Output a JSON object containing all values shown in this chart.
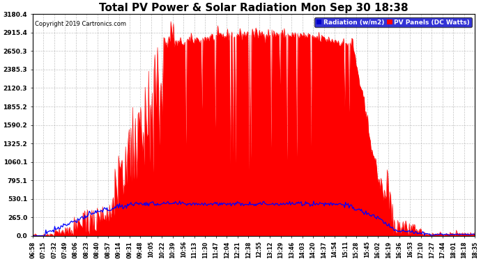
{
  "title": "Total PV Power & Solar Radiation Mon Sep 30 18:38",
  "copyright": "Copyright 2019 Cartronics.com",
  "legend_radiation": "Radiation (w/m2)",
  "legend_pv": "PV Panels (DC Watts)",
  "ymax": 3180.4,
  "ymin": 0.0,
  "yticks": [
    0.0,
    265.0,
    530.1,
    795.1,
    1060.1,
    1325.2,
    1590.2,
    1855.2,
    2120.3,
    2385.3,
    2650.3,
    2915.4,
    3180.4
  ],
  "bg_color": "#ffffff",
  "plot_bg_color": "#ffffff",
  "grid_color": "#aaaaaa",
  "pv_color": "#ff0000",
  "radiation_color": "#0000ff",
  "title_fontsize": 11,
  "x_times": [
    "06:58",
    "07:15",
    "07:32",
    "07:49",
    "08:06",
    "08:23",
    "08:40",
    "08:57",
    "09:14",
    "09:31",
    "09:48",
    "10:05",
    "10:22",
    "10:39",
    "10:56",
    "11:13",
    "11:30",
    "11:47",
    "12:04",
    "12:21",
    "12:38",
    "12:55",
    "13:12",
    "13:29",
    "13:46",
    "14:03",
    "14:20",
    "14:37",
    "14:54",
    "15:11",
    "15:28",
    "15:45",
    "16:02",
    "16:19",
    "16:36",
    "16:53",
    "17:10",
    "17:27",
    "17:44",
    "18:01",
    "18:18",
    "18:35"
  ]
}
